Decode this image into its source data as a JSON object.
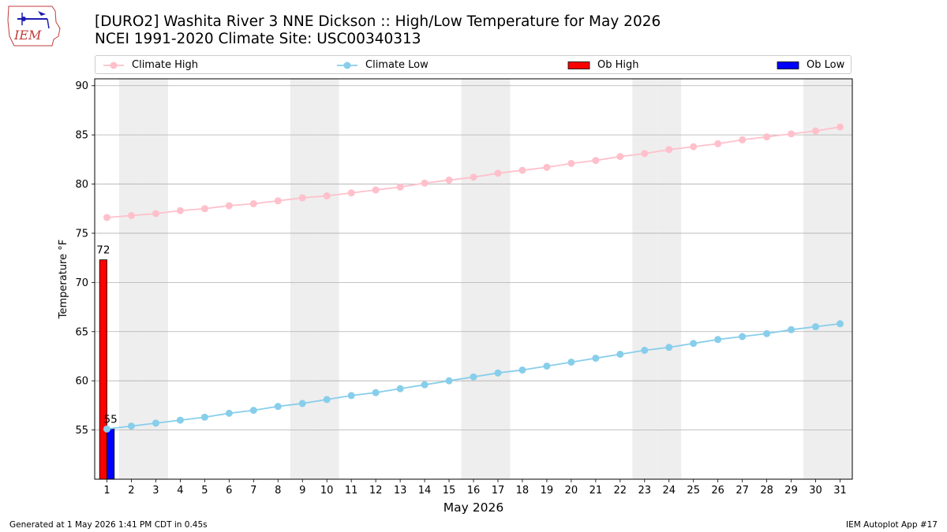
{
  "header": {
    "title_line1": "[DURO2] Washita River 3 NNE Dickson :: High/Low Temperature for May 2026",
    "title_line2": "NCEI 1991-2020 Climate Site: USC00340313",
    "logo_text": "IEM"
  },
  "legend": {
    "climate_high": "Climate High",
    "climate_low": "Climate Low",
    "ob_high": "Ob High",
    "ob_low": "Ob Low"
  },
  "footer": {
    "left": "Generated at 1 May 2026 1:41 PM CDT in 0.45s",
    "right": "IEM Autoplot App #17"
  },
  "colors": {
    "climate_high": "#ffc0cb",
    "climate_low": "#87ceeb",
    "ob_high": "#ff0000",
    "ob_low": "#0000ff",
    "weekend_shade": "#eeeeee",
    "grid": "#b0b0b0"
  },
  "chart_data": {
    "type": "bar",
    "xlabel": "May 2026",
    "ylabel": "Temperature °F",
    "ylim": [
      50.0,
      90.7
    ],
    "yticks": [
      55,
      60,
      65,
      70,
      75,
      80,
      85,
      90
    ],
    "days": [
      1,
      2,
      3,
      4,
      5,
      6,
      7,
      8,
      9,
      10,
      11,
      12,
      13,
      14,
      15,
      16,
      17,
      18,
      19,
      20,
      21,
      22,
      23,
      24,
      25,
      26,
      27,
      28,
      29,
      30,
      31
    ],
    "weekend_days": [
      2,
      3,
      9,
      10,
      16,
      17,
      23,
      24,
      30,
      31
    ],
    "grid": true,
    "legend_position": "top",
    "series": [
      {
        "name": "Climate High",
        "kind": "line",
        "values": [
          76.6,
          76.8,
          77.0,
          77.3,
          77.5,
          77.8,
          78.0,
          78.3,
          78.6,
          78.8,
          79.1,
          79.4,
          79.7,
          80.1,
          80.4,
          80.7,
          81.1,
          81.4,
          81.7,
          82.1,
          82.4,
          82.8,
          83.1,
          83.5,
          83.8,
          84.1,
          84.5,
          84.8,
          85.1,
          85.4,
          85.8
        ]
      },
      {
        "name": "Climate Low",
        "kind": "line",
        "values": [
          55.1,
          55.4,
          55.7,
          56.0,
          56.3,
          56.7,
          57.0,
          57.4,
          57.7,
          58.1,
          58.5,
          58.8,
          59.2,
          59.6,
          60.0,
          60.4,
          60.8,
          61.1,
          61.5,
          61.9,
          62.3,
          62.7,
          63.1,
          63.4,
          63.8,
          64.2,
          64.5,
          64.8,
          65.2,
          65.5,
          65.8
        ]
      },
      {
        "name": "Ob High",
        "kind": "bar",
        "x": [
          1
        ],
        "values": [
          72.3
        ],
        "labels": [
          "72"
        ]
      },
      {
        "name": "Ob Low",
        "kind": "bar",
        "x": [
          1
        ],
        "values": [
          55.1
        ],
        "labels": [
          "55"
        ]
      }
    ]
  }
}
